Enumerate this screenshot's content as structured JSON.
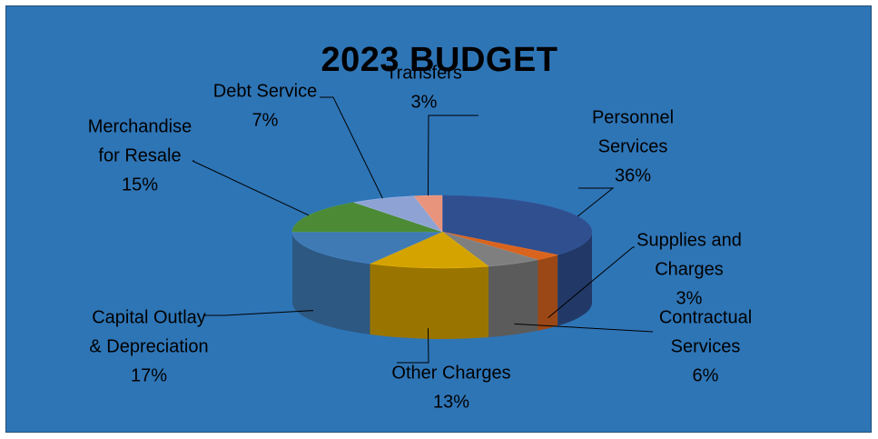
{
  "chart_data": {
    "type": "pie",
    "title": "2023 BUDGET",
    "slices": [
      {
        "label_lines": [
          "Personnel",
          "Services"
        ],
        "value": 36,
        "value_label": "36%",
        "color": "#2f4f8f"
      },
      {
        "label_lines": [
          "Supplies and",
          "Charges"
        ],
        "value": 3,
        "value_label": "3%",
        "color": "#d9641e"
      },
      {
        "label_lines": [
          "Contractual",
          "Services"
        ],
        "value": 6,
        "value_label": "6%",
        "color": "#7f7f7f"
      },
      {
        "label_lines": [
          "Other Charges"
        ],
        "value": 13,
        "value_label": "13%",
        "color": "#d4a300"
      },
      {
        "label_lines": [
          "Capital Outlay",
          "& Depreciation"
        ],
        "value": 17,
        "value_label": "17%",
        "color": "#3f7ab5"
      },
      {
        "label_lines": [
          "Merchandise",
          "for Resale"
        ],
        "value": 15,
        "value_label": "15%",
        "color": "#4c8a35"
      },
      {
        "label_lines": [
          "Debt Service"
        ],
        "value": 7,
        "value_label": "7%",
        "color": "#8ea3d3"
      },
      {
        "label_lines": [
          "Transfers"
        ],
        "value": 3,
        "value_label": "3%",
        "color": "#e8937c"
      }
    ],
    "legend": "none",
    "style": "3d-pie"
  },
  "colors": {
    "background": "#2e75b6",
    "frame_border": "#1f4e79",
    "text": "#000000"
  }
}
